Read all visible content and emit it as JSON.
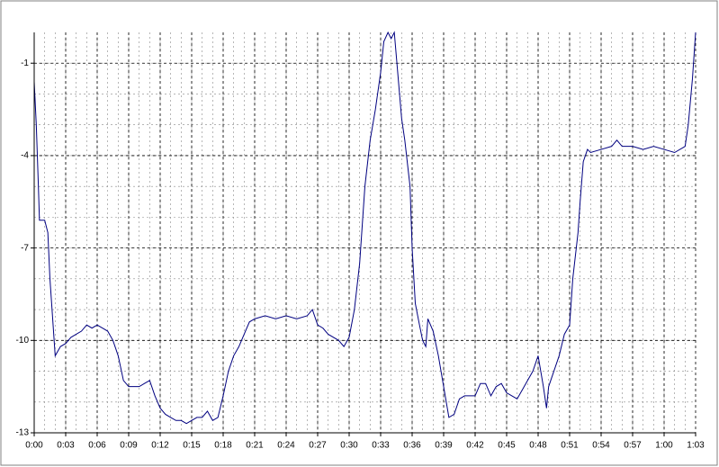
{
  "chart_data": {
    "type": "line",
    "x": [
      0,
      0.2,
      0.4,
      0.5,
      1,
      1.3,
      1.5,
      1.8,
      2,
      2.5,
      3,
      3.5,
      4,
      4.5,
      5,
      5.5,
      6,
      6.5,
      7,
      7.5,
      8,
      8.5,
      9,
      9.5,
      10,
      10.5,
      11,
      11.5,
      12,
      12.5,
      13,
      13.5,
      14,
      14.5,
      15,
      15.5,
      16,
      16.5,
      17,
      17.5,
      18,
      18.5,
      19,
      19.5,
      20,
      20.5,
      21,
      22,
      23,
      24,
      25,
      26,
      26.5,
      27,
      27.5,
      28,
      29,
      29.5,
      30,
      30.5,
      31,
      31.5,
      32,
      32.5,
      33,
      33.3,
      33.7,
      34,
      34.3,
      34.5,
      35,
      35.3,
      35.8,
      36,
      36.3,
      36.7,
      37,
      37.3,
      37.5,
      38,
      38.5,
      39,
      39.5,
      40,
      40.5,
      41,
      42,
      42.5,
      43,
      43.5,
      44,
      44.5,
      45,
      45.5,
      46,
      46.5,
      47,
      47.5,
      48,
      48.5,
      48.8,
      49,
      49.5,
      50,
      50.5,
      51,
      51.3,
      51.8,
      52,
      52.3,
      52.7,
      53,
      54,
      55,
      55.5,
      56,
      57,
      58,
      59,
      60,
      61,
      62,
      62.3,
      62.7,
      63
    ],
    "series": [
      {
        "color": "#000080",
        "values": [
          -1.6,
          -3,
          -5,
          -6.1,
          -6.1,
          -6.5,
          -8,
          -9.5,
          -10.5,
          -10.2,
          -10.1,
          -9.9,
          -9.8,
          -9.7,
          -9.5,
          -9.6,
          -9.5,
          -9.6,
          -9.7,
          -10,
          -10.5,
          -11.3,
          -11.5,
          -11.5,
          -11.5,
          -11.4,
          -11.3,
          -11.8,
          -12.2,
          -12.4,
          -12.5,
          -12.6,
          -12.6,
          -12.7,
          -12.6,
          -12.5,
          -12.5,
          -12.3,
          -12.6,
          -12.5,
          -11.8,
          -11,
          -10.5,
          -10.2,
          -9.8,
          -9.4,
          -9.3,
          -9.2,
          -9.3,
          -9.2,
          -9.3,
          -9.2,
          -9,
          -9.5,
          -9.6,
          -9.8,
          -10,
          -10.2,
          -9.9,
          -9,
          -7.5,
          -5,
          -3.5,
          -2.5,
          -1.3,
          -0.3,
          0,
          -0.2,
          0,
          -0.8,
          -2.8,
          -3.5,
          -5,
          -7,
          -8.8,
          -9.5,
          -10,
          -10.2,
          -9.3,
          -9.7,
          -10.5,
          -11.5,
          -12.5,
          -12.4,
          -11.9,
          -11.8,
          -11.8,
          -11.4,
          -11.4,
          -11.8,
          -11.5,
          -11.4,
          -11.7,
          -11.8,
          -11.9,
          -11.6,
          -11.3,
          -11,
          -10.5,
          -11.5,
          -12.2,
          -11.5,
          -11,
          -10.5,
          -9.8,
          -9.5,
          -8,
          -6.5,
          -5.5,
          -4.2,
          -3.8,
          -3.9,
          -3.8,
          -3.7,
          -3.5,
          -3.7,
          -3.7,
          -3.8,
          -3.7,
          -3.8,
          -3.9,
          -3.7,
          -3,
          -1.5,
          0
        ]
      }
    ],
    "xlim": [
      0,
      63
    ],
    "ylim": [
      -13,
      0
    ],
    "xticks": [
      {
        "value": 0,
        "label": "0:00"
      },
      {
        "value": 3,
        "label": "0:03"
      },
      {
        "value": 6,
        "label": "0:06"
      },
      {
        "value": 9,
        "label": "0:09"
      },
      {
        "value": 12,
        "label": "0:12"
      },
      {
        "value": 15,
        "label": "0:15"
      },
      {
        "value": 18,
        "label": "0:18"
      },
      {
        "value": 21,
        "label": "0:21"
      },
      {
        "value": 24,
        "label": "0:24"
      },
      {
        "value": 27,
        "label": "0:27"
      },
      {
        "value": 30,
        "label": "0:30"
      },
      {
        "value": 33,
        "label": "0:33"
      },
      {
        "value": 36,
        "label": "0:36"
      },
      {
        "value": 39,
        "label": "0:39"
      },
      {
        "value": 42,
        "label": "0:42"
      },
      {
        "value": 45,
        "label": "0:45"
      },
      {
        "value": 48,
        "label": "0:48"
      },
      {
        "value": 51,
        "label": "0:51"
      },
      {
        "value": 54,
        "label": "0:54"
      },
      {
        "value": 57,
        "label": "0:57"
      },
      {
        "value": 60,
        "label": "1:00"
      },
      {
        "value": 63,
        "label": "1:03"
      }
    ],
    "yticks": [
      -1,
      -4,
      -7,
      -10,
      -13
    ],
    "grid": true,
    "minor_grid": {
      "x": 1,
      "y": 1
    }
  }
}
